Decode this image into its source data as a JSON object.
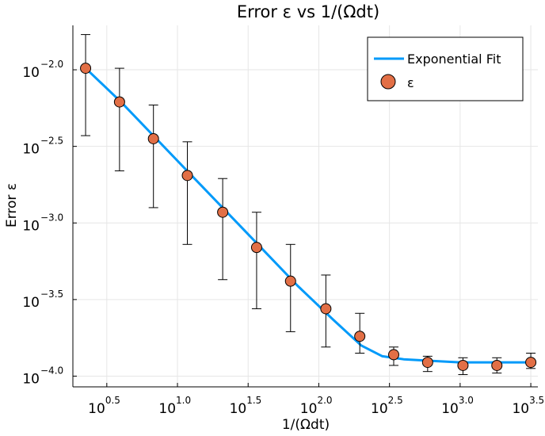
{
  "chart_data": {
    "type": "scatter",
    "title": "Error ε vs 1/(Ωdt)",
    "xlabel": "1/(Ωdt)",
    "ylabel": "Error ε",
    "xscale": "log10",
    "yscale": "log10",
    "xlim_log10": [
      0.26,
      3.55
    ],
    "ylim_log10": [
      -4.07,
      -1.71
    ],
    "x_ticks": [
      {
        "base": "10",
        "exp": "0.5",
        "log10": 0.5
      },
      {
        "base": "10",
        "exp": "1.0",
        "log10": 1.0
      },
      {
        "base": "10",
        "exp": "1.5",
        "log10": 1.5
      },
      {
        "base": "10",
        "exp": "2.0",
        "log10": 2.0
      },
      {
        "base": "10",
        "exp": "2.5",
        "log10": 2.5
      },
      {
        "base": "10",
        "exp": "3.0",
        "log10": 3.0
      },
      {
        "base": "10",
        "exp": "3.5",
        "log10": 3.5
      }
    ],
    "y_ticks": [
      {
        "base": "10",
        "exp": "−2.0",
        "log10": -2.0
      },
      {
        "base": "10",
        "exp": "−2.5",
        "log10": -2.5
      },
      {
        "base": "10",
        "exp": "−3.0",
        "log10": -3.0
      },
      {
        "base": "10",
        "exp": "−3.5",
        "log10": -3.5
      },
      {
        "base": "10",
        "exp": "−4.0",
        "log10": -4.0
      }
    ],
    "grid": true,
    "legend_position": "top-right",
    "series": [
      {
        "name": "Exponential Fit",
        "kind": "line",
        "color": "#009AFA",
        "x_log10": [
          0.35,
          0.6,
          0.85,
          1.1,
          1.35,
          1.6,
          1.85,
          2.1,
          2.3,
          2.45,
          2.6,
          2.8,
          3.0,
          3.2,
          3.5
        ],
        "y_log10": [
          -1.99,
          -2.21,
          -2.45,
          -2.69,
          -2.93,
          -3.17,
          -3.41,
          -3.63,
          -3.8,
          -3.87,
          -3.89,
          -3.9,
          -3.91,
          -3.91,
          -3.91
        ]
      },
      {
        "name": "ε",
        "kind": "scatter",
        "color": "#E26F46",
        "x_log10": [
          0.35,
          0.59,
          0.83,
          1.07,
          1.32,
          1.56,
          1.8,
          2.05,
          2.29,
          2.53,
          2.77,
          3.02,
          3.26,
          3.5
        ],
        "y_log10": [
          -1.99,
          -2.21,
          -2.45,
          -2.69,
          -2.93,
          -3.16,
          -3.38,
          -3.56,
          -3.74,
          -3.86,
          -3.91,
          -3.93,
          -3.93,
          -3.91
        ],
        "err_low_log10": [
          -2.43,
          -2.66,
          -2.9,
          -3.14,
          -3.37,
          -3.56,
          -3.71,
          -3.81,
          -3.85,
          -3.93,
          -3.97,
          -3.99,
          -3.98,
          -3.95
        ],
        "err_high_log10": [
          -1.77,
          -1.99,
          -2.23,
          -2.47,
          -2.71,
          -2.93,
          -3.14,
          -3.34,
          -3.59,
          -3.81,
          -3.87,
          -3.88,
          -3.88,
          -3.85
        ]
      }
    ]
  }
}
